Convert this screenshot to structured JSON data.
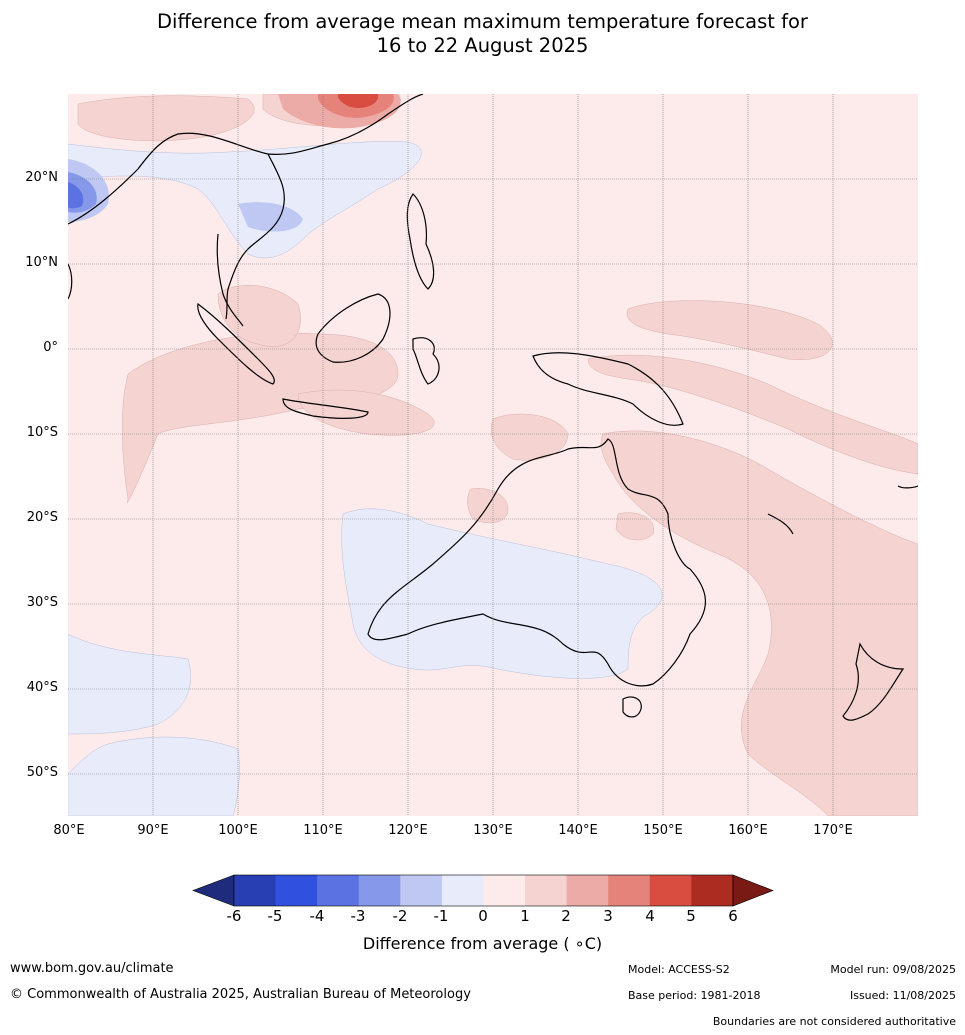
{
  "title_line1": "Difference from average mean maximum temperature forecast for",
  "title_line2": "16 to 22 August 2025",
  "map": {
    "region": "Australia, Maritime Continent and Western Pacific",
    "lon_range": [
      80,
      180
    ],
    "lat_range": [
      -55,
      30
    ],
    "lat_labels": [
      "20°N",
      "10°N",
      "0°",
      "10°S",
      "20°S",
      "30°S",
      "40°S",
      "50°S"
    ],
    "lon_labels": [
      "80°E",
      "90°E",
      "100°E",
      "110°E",
      "120°E",
      "130°E",
      "140°E",
      "150°E",
      "160°E",
      "170°E"
    ],
    "gridlines": true
  },
  "colorbar": {
    "title": "Difference from average ( ∘C)",
    "ticks": [
      "-6",
      "-5",
      "-4",
      "-3",
      "-2",
      "-1",
      "0",
      "1",
      "2",
      "3",
      "4",
      "5",
      "6"
    ],
    "colors": [
      "#1f2c7d",
      "#283fb3",
      "#3050e0",
      "#5b73e2",
      "#8598ea",
      "#bfc8f3",
      "#e8ecfa",
      "#fcebea",
      "#f5d3d1",
      "#ecaba6",
      "#e5827a",
      "#d94c40",
      "#ad2c22",
      "#7a1a14"
    ],
    "extend": "both"
  },
  "footer": {
    "url": "www.bom.gov.au/climate",
    "copyright": "© Commonwealth of Australia 2025, Australian Bureau of Meteorology",
    "model": "Model: ACCESS-S2",
    "base_period": "Base period: 1981-2018",
    "model_run": "Model run: 09/08/2025",
    "issued": "Issued: 11/08/2025",
    "disclaimer": "Boundaries are not considered authoritative"
  }
}
